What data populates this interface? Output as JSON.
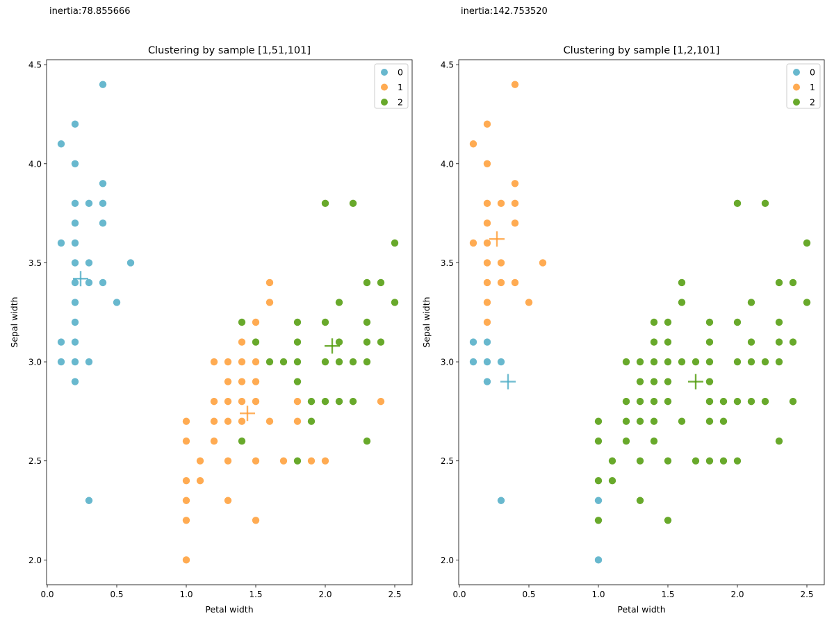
{
  "inertia_left": "inertia:78.855666",
  "inertia_right": "inertia:142.753520",
  "colors": {
    "0": "#4eacc5",
    "1": "#ff9c34",
    "2": "#4e9a06"
  },
  "chart_data": [
    {
      "type": "scatter",
      "title": "Clustering by sample [1,51,101]",
      "xlabel": "Petal width",
      "ylabel": "Sepal width",
      "xlim": [
        -0.005,
        2.625
      ],
      "ylim": [
        1.875,
        4.525
      ],
      "xticks": [
        0.0,
        0.5,
        1.0,
        1.5,
        2.0,
        2.5
      ],
      "xtick_labels": [
        "0.0",
        "0.5",
        "1.0",
        "1.5",
        "2.0",
        "2.5"
      ],
      "yticks": [
        2.0,
        2.5,
        3.0,
        3.5,
        4.0,
        4.5
      ],
      "ytick_labels": [
        "2.0",
        "2.5",
        "3.0",
        "3.5",
        "4.0",
        "4.5"
      ],
      "legend": {
        "position": "top-right",
        "entries": [
          "0",
          "1",
          "2"
        ]
      },
      "series": [
        {
          "name": "0",
          "points": [
            [
              0.1,
              4.1
            ],
            [
              0.1,
              3.6
            ],
            [
              0.1,
              3.1
            ],
            [
              0.1,
              3.0
            ],
            [
              0.2,
              4.2
            ],
            [
              0.2,
              4.0
            ],
            [
              0.2,
              3.8
            ],
            [
              0.2,
              3.7
            ],
            [
              0.2,
              3.6
            ],
            [
              0.2,
              3.5
            ],
            [
              0.2,
              3.4
            ],
            [
              0.2,
              3.3
            ],
            [
              0.2,
              3.2
            ],
            [
              0.2,
              3.1
            ],
            [
              0.2,
              3.0
            ],
            [
              0.2,
              2.9
            ],
            [
              0.3,
              3.8
            ],
            [
              0.3,
              3.5
            ],
            [
              0.3,
              3.4
            ],
            [
              0.3,
              3.0
            ],
            [
              0.3,
              2.3
            ],
            [
              0.4,
              4.4
            ],
            [
              0.4,
              3.9
            ],
            [
              0.4,
              3.8
            ],
            [
              0.4,
              3.7
            ],
            [
              0.4,
              3.4
            ],
            [
              0.5,
              3.3
            ],
            [
              0.6,
              3.5
            ]
          ]
        },
        {
          "name": "1",
          "points": [
            [
              1.0,
              2.7
            ],
            [
              1.0,
              2.6
            ],
            [
              1.0,
              2.4
            ],
            [
              1.0,
              2.3
            ],
            [
              1.0,
              2.2
            ],
            [
              1.0,
              2.0
            ],
            [
              1.1,
              2.5
            ],
            [
              1.1,
              2.4
            ],
            [
              1.2,
              3.0
            ],
            [
              1.2,
              2.8
            ],
            [
              1.2,
              2.7
            ],
            [
              1.2,
              2.6
            ],
            [
              1.3,
              3.0
            ],
            [
              1.3,
              2.9
            ],
            [
              1.3,
              2.8
            ],
            [
              1.3,
              2.7
            ],
            [
              1.3,
              2.5
            ],
            [
              1.3,
              2.3
            ],
            [
              1.4,
              3.1
            ],
            [
              1.4,
              3.0
            ],
            [
              1.4,
              2.9
            ],
            [
              1.4,
              2.8
            ],
            [
              1.4,
              2.7
            ],
            [
              1.5,
              3.2
            ],
            [
              1.5,
              3.0
            ],
            [
              1.5,
              2.9
            ],
            [
              1.5,
              2.8
            ],
            [
              1.5,
              2.5
            ],
            [
              1.5,
              2.2
            ],
            [
              1.6,
              3.4
            ],
            [
              1.6,
              3.3
            ],
            [
              1.6,
              2.7
            ],
            [
              1.7,
              2.5
            ],
            [
              1.8,
              2.8
            ],
            [
              1.8,
              2.7
            ],
            [
              1.9,
              2.5
            ],
            [
              2.0,
              2.5
            ],
            [
              2.4,
              2.8
            ]
          ]
        },
        {
          "name": "2",
          "points": [
            [
              1.4,
              3.2
            ],
            [
              1.4,
              2.6
            ],
            [
              1.5,
              3.1
            ],
            [
              1.6,
              3.0
            ],
            [
              1.7,
              3.0
            ],
            [
              1.8,
              3.2
            ],
            [
              1.8,
              3.1
            ],
            [
              1.8,
              3.0
            ],
            [
              1.8,
              2.9
            ],
            [
              1.8,
              2.5
            ],
            [
              1.9,
              2.8
            ],
            [
              1.9,
              2.7
            ],
            [
              2.0,
              3.8
            ],
            [
              2.0,
              3.2
            ],
            [
              2.0,
              3.0
            ],
            [
              2.0,
              2.8
            ],
            [
              2.1,
              3.3
            ],
            [
              2.1,
              3.1
            ],
            [
              2.1,
              3.0
            ],
            [
              2.1,
              2.8
            ],
            [
              2.2,
              3.8
            ],
            [
              2.2,
              3.0
            ],
            [
              2.2,
              2.8
            ],
            [
              2.3,
              3.4
            ],
            [
              2.3,
              3.2
            ],
            [
              2.3,
              3.1
            ],
            [
              2.3,
              3.0
            ],
            [
              2.3,
              2.6
            ],
            [
              2.4,
              3.4
            ],
            [
              2.4,
              3.1
            ],
            [
              2.5,
              3.6
            ],
            [
              2.5,
              3.3
            ]
          ]
        }
      ],
      "centroids": [
        {
          "name": "0",
          "x": 0.24,
          "y": 3.42
        },
        {
          "name": "1",
          "x": 1.44,
          "y": 2.74
        },
        {
          "name": "2",
          "x": 2.05,
          "y": 3.08
        }
      ]
    },
    {
      "type": "scatter",
      "title": "Clustering by sample [1,2,101]",
      "xlabel": "Petal width",
      "ylabel": "Sepal width",
      "xlim": [
        -0.005,
        2.625
      ],
      "ylim": [
        1.875,
        4.525
      ],
      "xticks": [
        0.0,
        0.5,
        1.0,
        1.5,
        2.0,
        2.5
      ],
      "xtick_labels": [
        "0.0",
        "0.5",
        "1.0",
        "1.5",
        "2.0",
        "2.5"
      ],
      "yticks": [
        2.0,
        2.5,
        3.0,
        3.5,
        4.0,
        4.5
      ],
      "ytick_labels": [
        "2.0",
        "2.5",
        "3.0",
        "3.5",
        "4.0",
        "4.5"
      ],
      "legend": {
        "position": "top-right",
        "entries": [
          "0",
          "1",
          "2"
        ]
      },
      "series": [
        {
          "name": "0",
          "points": [
            [
              0.1,
              3.1
            ],
            [
              0.1,
              3.0
            ],
            [
              0.2,
              3.1
            ],
            [
              0.2,
              3.0
            ],
            [
              0.2,
              2.9
            ],
            [
              0.3,
              3.0
            ],
            [
              0.3,
              2.3
            ],
            [
              1.0,
              2.3
            ],
            [
              1.0,
              2.0
            ]
          ]
        },
        {
          "name": "1",
          "points": [
            [
              0.1,
              4.1
            ],
            [
              0.1,
              3.6
            ],
            [
              0.2,
              4.2
            ],
            [
              0.2,
              4.0
            ],
            [
              0.2,
              3.8
            ],
            [
              0.2,
              3.7
            ],
            [
              0.2,
              3.6
            ],
            [
              0.2,
              3.5
            ],
            [
              0.2,
              3.4
            ],
            [
              0.2,
              3.3
            ],
            [
              0.2,
              3.2
            ],
            [
              0.3,
              3.8
            ],
            [
              0.3,
              3.5
            ],
            [
              0.3,
              3.4
            ],
            [
              0.4,
              4.4
            ],
            [
              0.4,
              3.9
            ],
            [
              0.4,
              3.8
            ],
            [
              0.4,
              3.7
            ],
            [
              0.4,
              3.4
            ],
            [
              0.5,
              3.3
            ],
            [
              0.6,
              3.5
            ]
          ]
        },
        {
          "name": "2",
          "points": [
            [
              1.0,
              2.7
            ],
            [
              1.0,
              2.6
            ],
            [
              1.0,
              2.4
            ],
            [
              1.0,
              2.2
            ],
            [
              1.1,
              2.5
            ],
            [
              1.1,
              2.4
            ],
            [
              1.2,
              3.0
            ],
            [
              1.2,
              2.8
            ],
            [
              1.2,
              2.7
            ],
            [
              1.2,
              2.6
            ],
            [
              1.3,
              3.0
            ],
            [
              1.3,
              2.9
            ],
            [
              1.3,
              2.8
            ],
            [
              1.3,
              2.7
            ],
            [
              1.3,
              2.5
            ],
            [
              1.3,
              2.3
            ],
            [
              1.4,
              3.2
            ],
            [
              1.4,
              3.1
            ],
            [
              1.4,
              3.0
            ],
            [
              1.4,
              2.9
            ],
            [
              1.4,
              2.8
            ],
            [
              1.4,
              2.7
            ],
            [
              1.4,
              2.6
            ],
            [
              1.5,
              3.2
            ],
            [
              1.5,
              3.1
            ],
            [
              1.5,
              3.0
            ],
            [
              1.5,
              2.9
            ],
            [
              1.5,
              2.8
            ],
            [
              1.5,
              2.5
            ],
            [
              1.5,
              2.2
            ],
            [
              1.6,
              3.4
            ],
            [
              1.6,
              3.3
            ],
            [
              1.6,
              3.0
            ],
            [
              1.6,
              2.7
            ],
            [
              1.7,
              3.0
            ],
            [
              1.7,
              2.5
            ],
            [
              1.8,
              3.2
            ],
            [
              1.8,
              3.1
            ],
            [
              1.8,
              3.0
            ],
            [
              1.8,
              2.9
            ],
            [
              1.8,
              2.8
            ],
            [
              1.8,
              2.7
            ],
            [
              1.8,
              2.5
            ],
            [
              1.9,
              2.8
            ],
            [
              1.9,
              2.7
            ],
            [
              1.9,
              2.5
            ],
            [
              2.0,
              3.8
            ],
            [
              2.0,
              3.2
            ],
            [
              2.0,
              3.0
            ],
            [
              2.0,
              2.8
            ],
            [
              2.0,
              2.5
            ],
            [
              2.1,
              3.3
            ],
            [
              2.1,
              3.1
            ],
            [
              2.1,
              3.0
            ],
            [
              2.1,
              2.8
            ],
            [
              2.2,
              3.8
            ],
            [
              2.2,
              3.0
            ],
            [
              2.2,
              2.8
            ],
            [
              2.3,
              3.4
            ],
            [
              2.3,
              3.2
            ],
            [
              2.3,
              3.1
            ],
            [
              2.3,
              3.0
            ],
            [
              2.3,
              2.6
            ],
            [
              2.4,
              3.4
            ],
            [
              2.4,
              3.1
            ],
            [
              2.4,
              2.8
            ],
            [
              2.5,
              3.6
            ],
            [
              2.5,
              3.3
            ]
          ]
        }
      ],
      "centroids": [
        {
          "name": "0",
          "x": 0.35,
          "y": 2.9
        },
        {
          "name": "1",
          "x": 0.27,
          "y": 3.62
        },
        {
          "name": "2",
          "x": 1.7,
          "y": 2.9
        }
      ]
    }
  ]
}
